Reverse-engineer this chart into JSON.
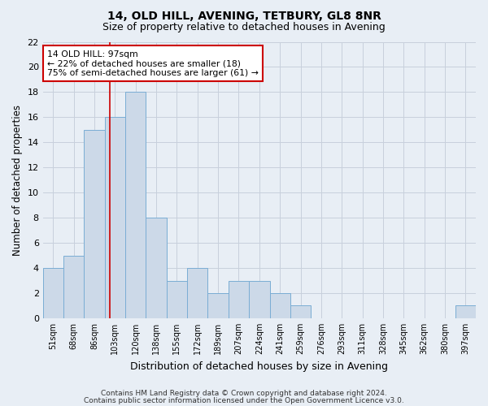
{
  "title1": "14, OLD HILL, AVENING, TETBURY, GL8 8NR",
  "title2": "Size of property relative to detached houses in Avening",
  "xlabel": "Distribution of detached houses by size in Avening",
  "ylabel": "Number of detached properties",
  "categories": [
    "51sqm",
    "68sqm",
    "86sqm",
    "103sqm",
    "120sqm",
    "138sqm",
    "155sqm",
    "172sqm",
    "189sqm",
    "207sqm",
    "224sqm",
    "241sqm",
    "259sqm",
    "276sqm",
    "293sqm",
    "311sqm",
    "328sqm",
    "345sqm",
    "362sqm",
    "380sqm",
    "397sqm"
  ],
  "values": [
    4,
    5,
    15,
    16,
    18,
    8,
    3,
    4,
    2,
    3,
    3,
    2,
    1,
    0,
    0,
    0,
    0,
    0,
    0,
    0,
    1
  ],
  "bar_color": "#ccd9e8",
  "bar_edge_color": "#7aadd4",
  "grid_color": "#c8d0dc",
  "annotation_box_edge_color": "#cc0000",
  "annotation_line_color": "#cc0000",
  "property_bar_index": 2.75,
  "annotation_text_line1": "14 OLD HILL: 97sqm",
  "annotation_text_line2": "← 22% of detached houses are smaller (18)",
  "annotation_text_line3": "75% of semi-detached houses are larger (61) →",
  "ylim": [
    0,
    22
  ],
  "yticks": [
    0,
    2,
    4,
    6,
    8,
    10,
    12,
    14,
    16,
    18,
    20,
    22
  ],
  "footer1": "Contains HM Land Registry data © Crown copyright and database right 2024.",
  "footer2": "Contains public sector information licensed under the Open Government Licence v3.0.",
  "background_color": "#e8eef5",
  "plot_bg_color": "#e8eef5"
}
